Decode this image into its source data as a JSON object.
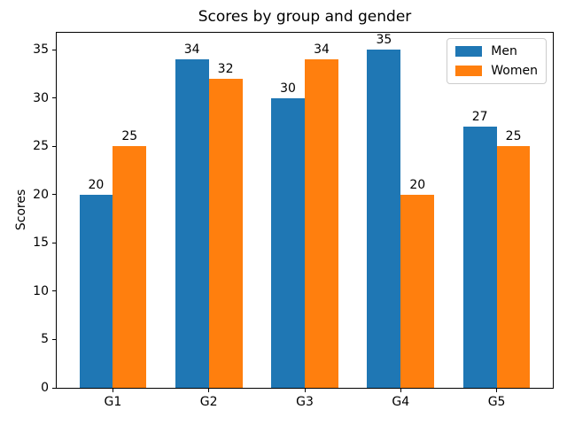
{
  "chart_data": {
    "type": "bar",
    "title": "Scores by group and gender",
    "xlabel": "",
    "ylabel": "Scores",
    "categories": [
      "G1",
      "G2",
      "G3",
      "G4",
      "G5"
    ],
    "series": [
      {
        "name": "Men",
        "color": "#1f77b4",
        "values": [
          20,
          34,
          30,
          35,
          27
        ]
      },
      {
        "name": "Women",
        "color": "#ff7f0e",
        "values": [
          25,
          32,
          34,
          20,
          25
        ]
      }
    ],
    "bar_width": 0.35,
    "bar_labels": true,
    "ylim": [
      0,
      36.75
    ],
    "xlim": [
      -0.585,
      4.585
    ],
    "yticks": [
      0,
      5,
      10,
      15,
      20,
      25,
      30,
      35
    ],
    "grid": false,
    "legend_position": "upper right",
    "colors": {
      "spine": "#000000",
      "legend_border": "#cccccc",
      "background": "#ffffff"
    }
  }
}
